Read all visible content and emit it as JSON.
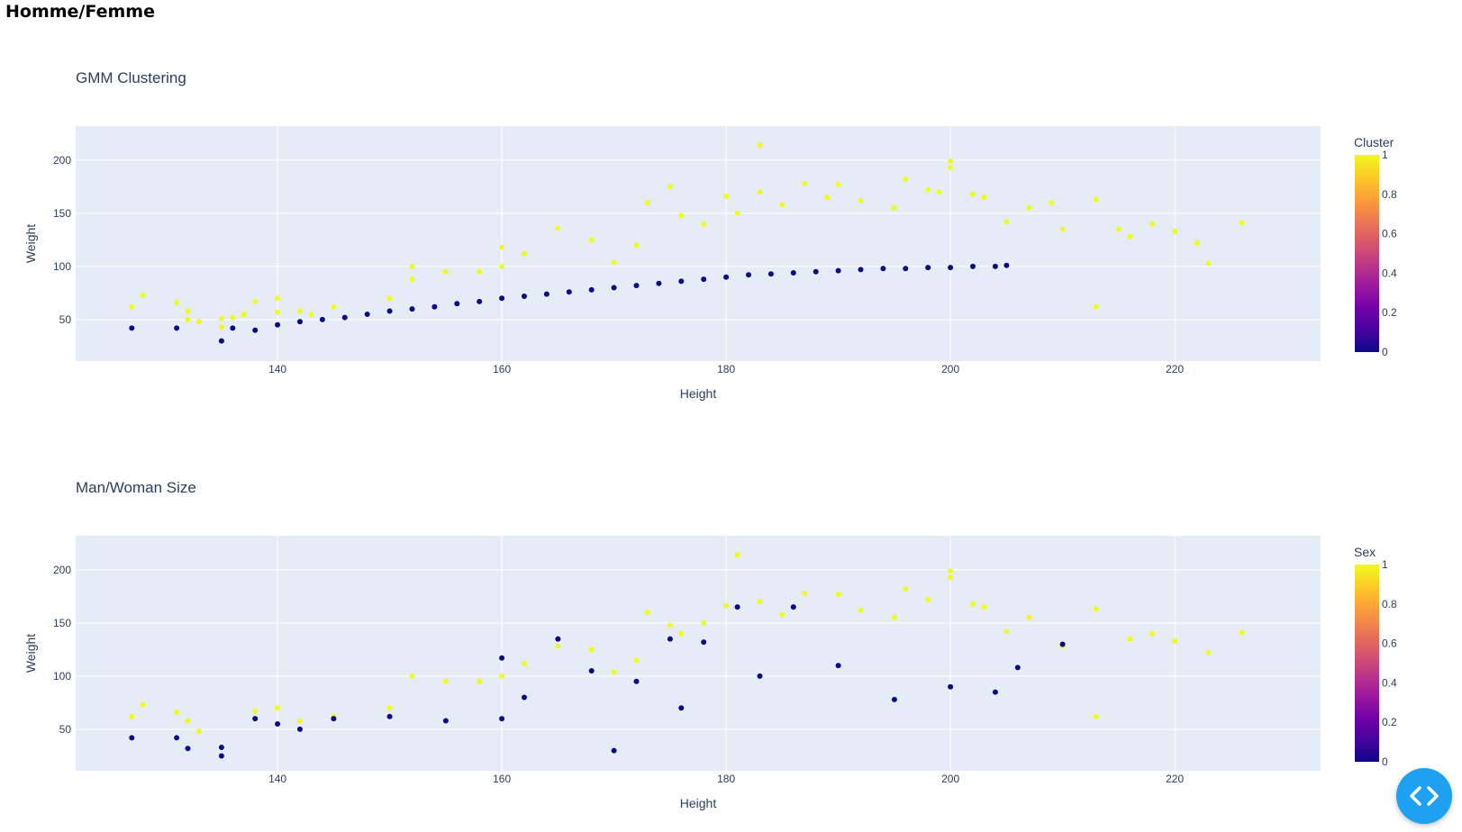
{
  "page": {
    "title": "Homme/Femme"
  },
  "chart_data": [
    {
      "type": "scatter",
      "title": "GMM Clustering",
      "xlabel": "Height",
      "ylabel": "Weight",
      "xlim": [
        122,
        233
      ],
      "ylim": [
        11,
        232
      ],
      "xticks": [
        140,
        160,
        180,
        200,
        220
      ],
      "yticks": [
        50,
        100,
        150,
        200
      ],
      "grid": true,
      "legend_position": "right",
      "colorbar": {
        "title": "Cluster",
        "range": [
          0,
          1
        ],
        "ticks": [
          "1",
          "0.8",
          "0.6",
          "0.4",
          "0.2",
          "0"
        ]
      },
      "colors": {
        "0": "#0d0887",
        "1": "#f0f921"
      },
      "points": {
        "x": [
          127,
          128,
          131,
          132,
          132,
          133,
          135,
          135,
          136,
          137,
          138,
          140,
          140,
          142,
          143,
          145,
          150,
          152,
          152,
          155,
          158,
          160,
          160,
          162,
          165,
          168,
          170,
          172,
          173,
          175,
          176,
          178,
          180,
          181,
          183,
          183,
          185,
          187,
          189,
          190,
          192,
          195,
          196,
          198,
          199,
          200,
          200,
          202,
          203,
          205,
          207,
          209,
          210,
          213,
          213,
          215,
          216,
          218,
          220,
          222,
          223,
          226,
          136,
          138,
          140,
          142,
          144,
          146,
          148,
          150,
          152,
          154,
          156,
          158,
          160,
          162,
          164,
          166,
          168,
          170,
          172,
          174,
          176,
          178,
          180,
          182,
          184,
          186,
          188,
          190,
          192,
          194,
          196,
          198,
          200,
          202,
          204,
          205,
          127,
          131,
          135
        ],
        "y": [
          62,
          73,
          66,
          58,
          50,
          48,
          51,
          43,
          52,
          55,
          67,
          70,
          57,
          58,
          55,
          62,
          70,
          88,
          100,
          95,
          95,
          118,
          100,
          112,
          136,
          125,
          104,
          120,
          160,
          175,
          148,
          140,
          166,
          150,
          214,
          170,
          158,
          178,
          165,
          177,
          162,
          155,
          182,
          172,
          170,
          199,
          193,
          168,
          165,
          142,
          155,
          160,
          135,
          163,
          62,
          135,
          128,
          140,
          133,
          122,
          103,
          141,
          42,
          40,
          45,
          48,
          50,
          52,
          55,
          58,
          60,
          62,
          65,
          67,
          70,
          72,
          74,
          76,
          78,
          80,
          82,
          84,
          86,
          88,
          90,
          92,
          93,
          94,
          95,
          96,
          97,
          98,
          98,
          99,
          99,
          100,
          100,
          101,
          42,
          42,
          30
        ],
        "cluster": [
          1,
          1,
          1,
          1,
          1,
          1,
          1,
          1,
          1,
          1,
          1,
          1,
          1,
          1,
          1,
          1,
          1,
          1,
          1,
          1,
          1,
          1,
          1,
          1,
          1,
          1,
          1,
          1,
          1,
          1,
          1,
          1,
          1,
          1,
          1,
          1,
          1,
          1,
          1,
          1,
          1,
          1,
          1,
          1,
          1,
          1,
          1,
          1,
          1,
          1,
          1,
          1,
          1,
          1,
          1,
          1,
          1,
          1,
          1,
          1,
          1,
          1,
          0,
          0,
          0,
          0,
          0,
          0,
          0,
          0,
          0,
          0,
          0,
          0,
          0,
          0,
          0,
          0,
          0,
          0,
          0,
          0,
          0,
          0,
          0,
          0,
          0,
          0,
          0,
          0,
          0,
          0,
          0,
          0,
          0,
          0,
          0,
          0,
          0,
          0,
          0
        ]
      }
    },
    {
      "type": "scatter",
      "title": "Man/Woman Size",
      "xlabel": "Height",
      "ylabel": "Weight",
      "xlim": [
        122,
        233
      ],
      "ylim": [
        11,
        232
      ],
      "xticks": [
        140,
        160,
        180,
        200,
        220
      ],
      "yticks": [
        50,
        100,
        150,
        200
      ],
      "grid": true,
      "legend_position": "right",
      "colorbar": {
        "title": "Sex",
        "range": [
          0,
          1
        ],
        "ticks": [
          "1",
          "0.8",
          "0.6",
          "0.4",
          "0.2",
          "0"
        ]
      },
      "colors": {
        "0": "#0d0887",
        "1": "#f0f921"
      },
      "points": {
        "x": [
          127,
          128,
          131,
          132,
          133,
          138,
          140,
          142,
          145,
          150,
          152,
          155,
          158,
          160,
          162,
          165,
          168,
          170,
          172,
          173,
          175,
          176,
          178,
          180,
          181,
          183,
          185,
          187,
          190,
          192,
          195,
          196,
          198,
          200,
          200,
          202,
          203,
          205,
          207,
          210,
          213,
          213,
          216,
          218,
          220,
          223,
          226,
          127,
          131,
          132,
          135,
          135,
          138,
          140,
          142,
          145,
          150,
          155,
          160,
          160,
          162,
          165,
          168,
          172,
          175,
          178,
          181,
          183,
          186,
          190,
          195,
          200,
          204,
          206,
          210,
          170,
          176
        ],
        "y": [
          62,
          73,
          66,
          58,
          48,
          67,
          70,
          58,
          62,
          70,
          100,
          95,
          95,
          100,
          112,
          128,
          125,
          104,
          115,
          160,
          148,
          140,
          150,
          166,
          214,
          170,
          158,
          178,
          177,
          162,
          155,
          182,
          172,
          199,
          193,
          168,
          165,
          142,
          155,
          128,
          163,
          62,
          135,
          140,
          133,
          122,
          141,
          42,
          42,
          32,
          33,
          25,
          60,
          55,
          50,
          60,
          62,
          58,
          117,
          60,
          80,
          135,
          105,
          95,
          135,
          132,
          165,
          100,
          165,
          110,
          78,
          90,
          85,
          108,
          130,
          30,
          70
        ],
        "sex": [
          1,
          1,
          1,
          1,
          1,
          1,
          1,
          1,
          1,
          1,
          1,
          1,
          1,
          1,
          1,
          1,
          1,
          1,
          1,
          1,
          1,
          1,
          1,
          1,
          1,
          1,
          1,
          1,
          1,
          1,
          1,
          1,
          1,
          1,
          1,
          1,
          1,
          1,
          1,
          1,
          1,
          1,
          1,
          1,
          1,
          1,
          1,
          0,
          0,
          0,
          0,
          0,
          0,
          0,
          0,
          0,
          0,
          0,
          0,
          0,
          0,
          0,
          0,
          0,
          0,
          0,
          0,
          0,
          0,
          0,
          0,
          0,
          0,
          0,
          0,
          0,
          0
        ]
      }
    }
  ],
  "action_button": {
    "icon": "code-icon"
  }
}
